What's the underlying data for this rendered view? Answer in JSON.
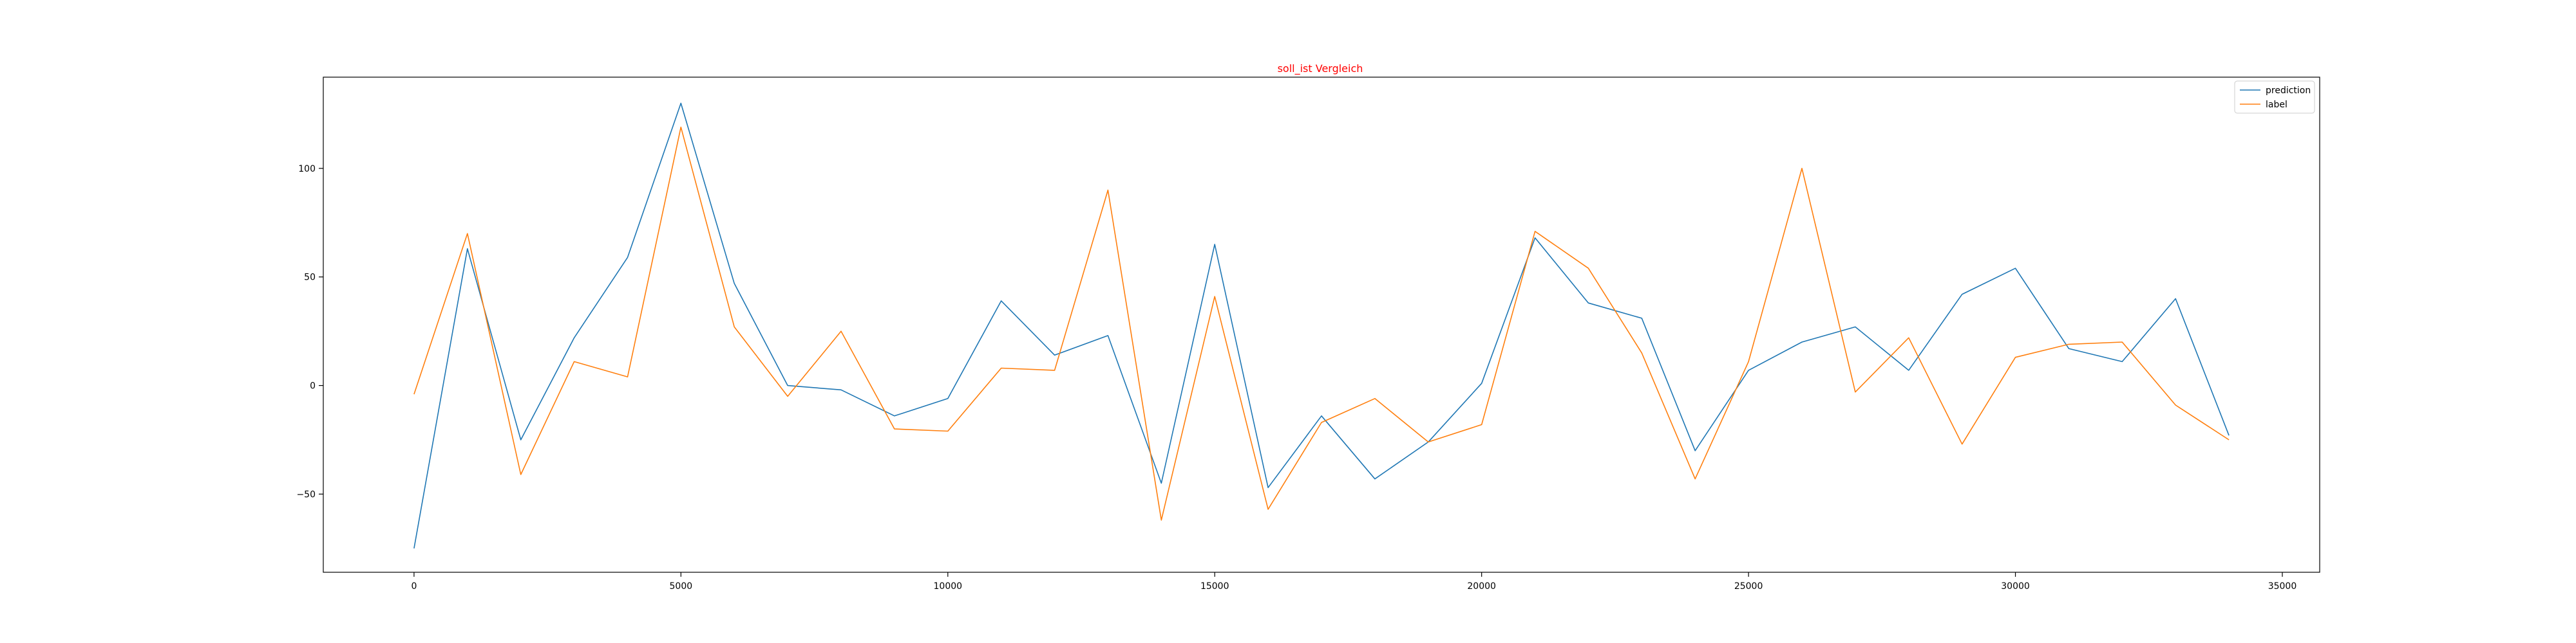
{
  "chart_data": {
    "type": "line",
    "title": "soll_ist Vergleich",
    "title_color": "#ff0000",
    "xlabel": "",
    "ylabel": "",
    "xlim": [
      -1700,
      35700
    ],
    "ylim": [
      -86,
      142
    ],
    "x_ticks": [
      0,
      5000,
      10000,
      15000,
      20000,
      25000,
      30000,
      35000
    ],
    "y_ticks": [
      -50,
      0,
      50,
      100
    ],
    "grid": false,
    "legend_position": "top-right",
    "x": [
      0,
      1000,
      2000,
      3000,
      4000,
      5000,
      6000,
      7000,
      8000,
      9000,
      10000,
      11000,
      12000,
      13000,
      14000,
      15000,
      16000,
      17000,
      18000,
      19000,
      20000,
      21000,
      22000,
      23000,
      24000,
      25000,
      26000,
      27000,
      28000,
      29000,
      30000,
      31000,
      32000,
      33000,
      34000
    ],
    "series": [
      {
        "name": "prediction",
        "color": "#1f77b4",
        "values": [
          -75,
          63,
          -25,
          22,
          59,
          130,
          47,
          0,
          -2,
          -14,
          -6,
          39,
          14,
          23,
          -45,
          65,
          -47,
          -14,
          -43,
          -26,
          1,
          68,
          38,
          31,
          -30,
          7,
          20,
          27,
          7,
          42,
          54,
          17,
          11,
          40,
          -23
        ]
      },
      {
        "name": "label",
        "color": "#ff7f0e",
        "values": [
          -4,
          70,
          -41,
          11,
          4,
          119,
          27,
          -5,
          25,
          -20,
          -21,
          8,
          7,
          90,
          -62,
          41,
          -57,
          -17,
          -6,
          -26,
          -18,
          71,
          54,
          15,
          -43,
          11,
          100,
          -3,
          22,
          -27,
          13,
          19,
          20,
          -9,
          -25
        ]
      }
    ]
  }
}
